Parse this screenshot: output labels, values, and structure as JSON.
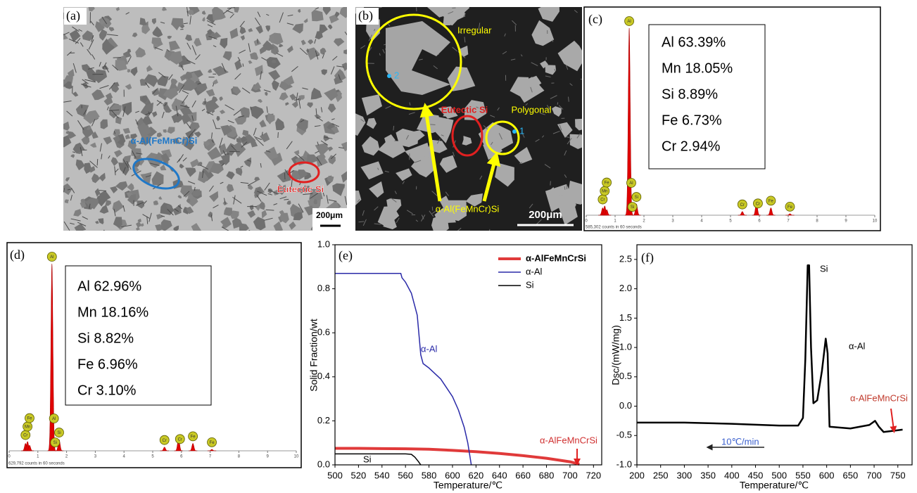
{
  "panels": {
    "a": {
      "label": "(a)",
      "phase_label": "α-Al(FeMnCr)Si",
      "eutectic_label": "Eutectic Si",
      "scale_bar": "200μm"
    },
    "b": {
      "label": "(b)",
      "irregular_label": "Irregular",
      "point_2": "2",
      "eutectic_label": "Eutectic Si",
      "polygonal_label": "Polygonal",
      "point_1": "1",
      "phase_label": "α-Al(FeMnCr)Si",
      "scale_bar": "200μm"
    }
  },
  "chart_data": [
    {
      "type": "spectrum",
      "label": "(c)",
      "composition": [
        "Al 63.39%",
        "Mn 18.05%",
        "Si 8.89%",
        "Fe 6.73%",
        "Cr 2.94%"
      ],
      "counts_label": "585,302 counts in 60 seconds",
      "xlim": [
        0,
        10
      ],
      "xticks": [
        0,
        1,
        2,
        3,
        4,
        5,
        6,
        7,
        8,
        9,
        10
      ],
      "color": "#e00000",
      "peaks": [
        {
          "x": 0.57,
          "height": 0.04
        },
        {
          "x": 0.64,
          "height": 0.05
        },
        {
          "x": 0.71,
          "height": 0.03
        },
        {
          "x": 1.49,
          "height": 1.0
        },
        {
          "x": 1.74,
          "height": 0.06
        },
        {
          "x": 5.41,
          "height": 0.02
        },
        {
          "x": 5.9,
          "height": 0.07
        },
        {
          "x": 6.4,
          "height": 0.04
        },
        {
          "x": 7.06,
          "height": 0.008
        }
      ],
      "markers": [
        {
          "label": "Cr",
          "x": 0.57
        },
        {
          "label": "Mn",
          "x": 0.64
        },
        {
          "label": "Fe",
          "x": 0.71
        },
        {
          "label": "Al",
          "x": 1.49
        },
        {
          "label": "Al",
          "x": 1.56
        },
        {
          "label": "Si",
          "x": 1.6
        },
        {
          "label": "Si",
          "x": 1.74
        },
        {
          "label": "Cr",
          "x": 5.41
        },
        {
          "label": "Cr",
          "x": 5.95
        },
        {
          "label": "Fe",
          "x": 6.4
        },
        {
          "label": "Fe",
          "x": 7.06
        }
      ]
    },
    {
      "type": "spectrum",
      "label": "(d)",
      "composition": [
        "Al 62.96%",
        "Mn 18.16%",
        "Si 8.82%",
        "Fe 6.96%",
        "Cr 3.10%"
      ],
      "counts_label": "629,792 counts in 60 seconds",
      "xlim": [
        0,
        10
      ],
      "xticks": [
        0,
        1,
        2,
        3,
        4,
        5,
        6,
        7,
        8,
        9,
        10
      ],
      "color": "#e00000",
      "peaks": [
        {
          "x": 0.57,
          "height": 0.04
        },
        {
          "x": 0.64,
          "height": 0.05
        },
        {
          "x": 0.71,
          "height": 0.03
        },
        {
          "x": 1.49,
          "height": 1.0
        },
        {
          "x": 1.74,
          "height": 0.06
        },
        {
          "x": 5.41,
          "height": 0.02
        },
        {
          "x": 5.9,
          "height": 0.07
        },
        {
          "x": 6.4,
          "height": 0.04
        },
        {
          "x": 7.06,
          "height": 0.008
        }
      ],
      "markers": [
        {
          "label": "Cr",
          "x": 0.57
        },
        {
          "label": "Mn",
          "x": 0.64
        },
        {
          "label": "Fe",
          "x": 0.71
        },
        {
          "label": "Al",
          "x": 1.49
        },
        {
          "label": "Al",
          "x": 1.56
        },
        {
          "label": "Si",
          "x": 1.6
        },
        {
          "label": "Si",
          "x": 1.74
        },
        {
          "label": "Cr",
          "x": 5.41
        },
        {
          "label": "Cr",
          "x": 5.95
        },
        {
          "label": "Fe",
          "x": 6.4
        },
        {
          "label": "Fe",
          "x": 7.06
        }
      ]
    },
    {
      "type": "line",
      "label": "(e)",
      "xlabel": "Temperature/℃",
      "ylabel": "Solid Fraction/wt",
      "xlim": [
        500,
        727
      ],
      "ylim": [
        0,
        1
      ],
      "xticks": [
        500,
        520,
        540,
        560,
        580,
        600,
        620,
        640,
        660,
        680,
        700,
        720
      ],
      "yticks": [
        {
          "value": 0,
          "label": "0.0"
        },
        0.2,
        0.4,
        0.6,
        0.8,
        {
          "value": 1,
          "label": "1.0"
        }
      ],
      "legend": "upper right",
      "series": [
        {
          "name": "α-AlFeMnCrSi",
          "color": "#e03a3a",
          "x": [
            500,
            520,
            540,
            560,
            580,
            600,
            620,
            640,
            660,
            680,
            700,
            708
          ],
          "values": [
            0.075,
            0.075,
            0.074,
            0.073,
            0.071,
            0.066,
            0.06,
            0.052,
            0.042,
            0.03,
            0.014,
            0.003
          ]
        },
        {
          "name": "α-Al",
          "color": "#2a2aa8",
          "x": [
            500,
            520,
            540,
            556,
            557,
            560,
            565,
            570,
            573,
            575,
            580,
            590,
            600,
            605,
            610,
            613,
            616
          ],
          "values": [
            0.87,
            0.87,
            0.87,
            0.87,
            0.85,
            0.83,
            0.78,
            0.68,
            0.5,
            0.46,
            0.44,
            0.39,
            0.31,
            0.25,
            0.17,
            0.1,
            0
          ]
        },
        {
          "name": "Si",
          "color": "#000000",
          "x": [
            500,
            520,
            540,
            560,
            565,
            568,
            571,
            573
          ],
          "values": [
            0.05,
            0.05,
            0.05,
            0.05,
            0.048,
            0.035,
            0.015,
            0
          ]
        }
      ],
      "annotations": [
        {
          "text": "α-Al",
          "color": "#2a2aa8"
        },
        {
          "text": "Si",
          "color": "#000000"
        },
        {
          "text": "α-AlFeMnCrSi",
          "color": "#d03030"
        }
      ]
    },
    {
      "type": "line",
      "label": "(f)",
      "xlabel": "Temperature/℃",
      "ylabel": "Dsc/(mW/mg)",
      "xlim": [
        200,
        780
      ],
      "ylim": [
        -1,
        2.75
      ],
      "xticks": [
        200,
        250,
        300,
        350,
        400,
        450,
        500,
        550,
        600,
        650,
        700,
        750
      ],
      "yticks": [
        {
          "value": -1,
          "label": "-1.0"
        },
        -0.5,
        {
          "value": 0,
          "label": "0.0"
        },
        0.5,
        {
          "value": 1,
          "label": "1.0"
        },
        1.5,
        {
          "value": 2,
          "label": "2.0"
        },
        2.5
      ],
      "series": [
        {
          "color": "#000000",
          "x": [
            200,
            300,
            400,
            500,
            540,
            550,
            555,
            560,
            563,
            567,
            572,
            580,
            590,
            598,
            602,
            606,
            650,
            690,
            702,
            710,
            720,
            740,
            760
          ],
          "values": [
            -0.28,
            -0.28,
            -0.3,
            -0.33,
            -0.33,
            -0.2,
            0.8,
            2.4,
            2.4,
            1.0,
            0.05,
            0.1,
            0.6,
            1.15,
            0.9,
            -0.35,
            -0.38,
            -0.32,
            -0.25,
            -0.35,
            -0.44,
            -0.42,
            -0.4
          ]
        }
      ],
      "annotations": [
        {
          "text": "Si",
          "color": "#000000"
        },
        {
          "text": "α-Al",
          "color": "#000000"
        },
        {
          "text": "α-AlFeMnCrSi",
          "color": "#c0392b"
        },
        {
          "text": "10℃/min",
          "color": "#3a5fcd"
        }
      ]
    }
  ]
}
